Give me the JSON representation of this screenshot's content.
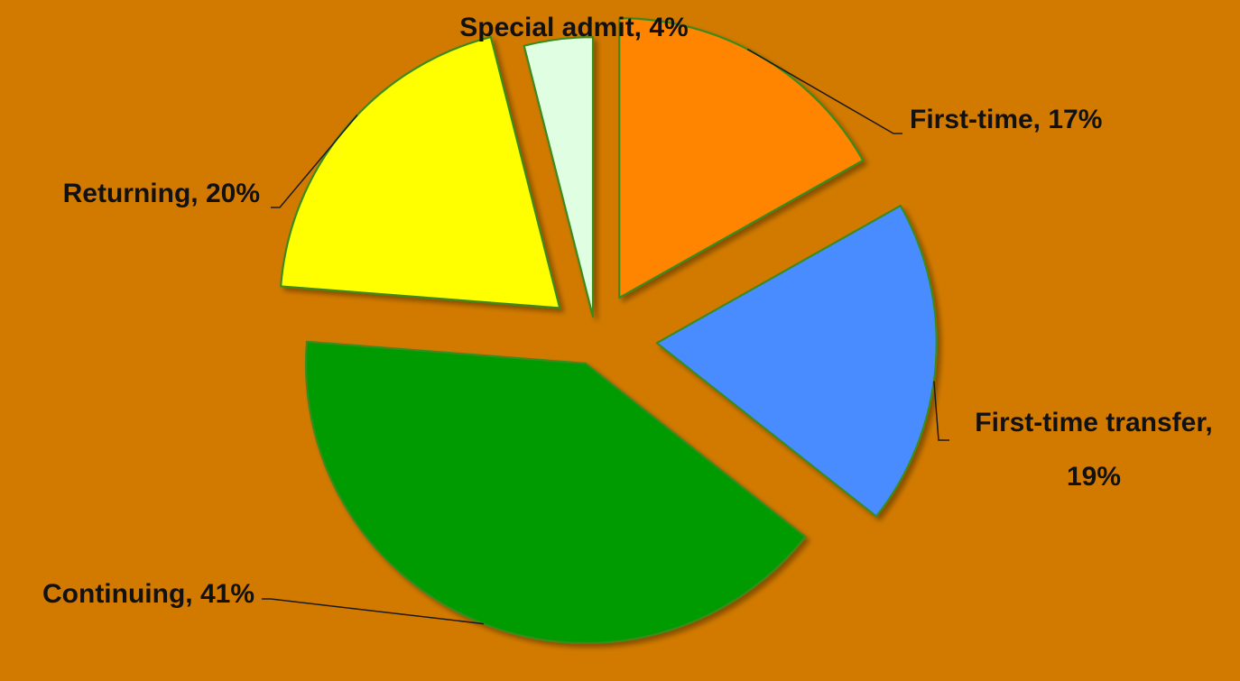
{
  "colors": {
    "background": "#D27A00",
    "slice_border": "#3A8A1E",
    "label_text": "#111111"
  },
  "chart_data": {
    "type": "pie",
    "exploded": true,
    "title": "",
    "slices": [
      {
        "label": "First-time",
        "value": 17,
        "color": "#FF8500",
        "label_text": "First-time, 17%"
      },
      {
        "label": "First-time transfer",
        "value": 19,
        "color": "#4A8CFF",
        "label_text": "First-time transfer, 19%"
      },
      {
        "label": "Continuing",
        "value": 41,
        "color": "#009B00",
        "label_text": "Continuing, 41%"
      },
      {
        "label": "Returning",
        "value": 20,
        "color": "#FFFF00",
        "label_text": "Returning, 20%"
      },
      {
        "label": "Special admit",
        "value": 4,
        "color": "#E0FFE2",
        "label_text": "Special admit, 4%"
      }
    ]
  }
}
